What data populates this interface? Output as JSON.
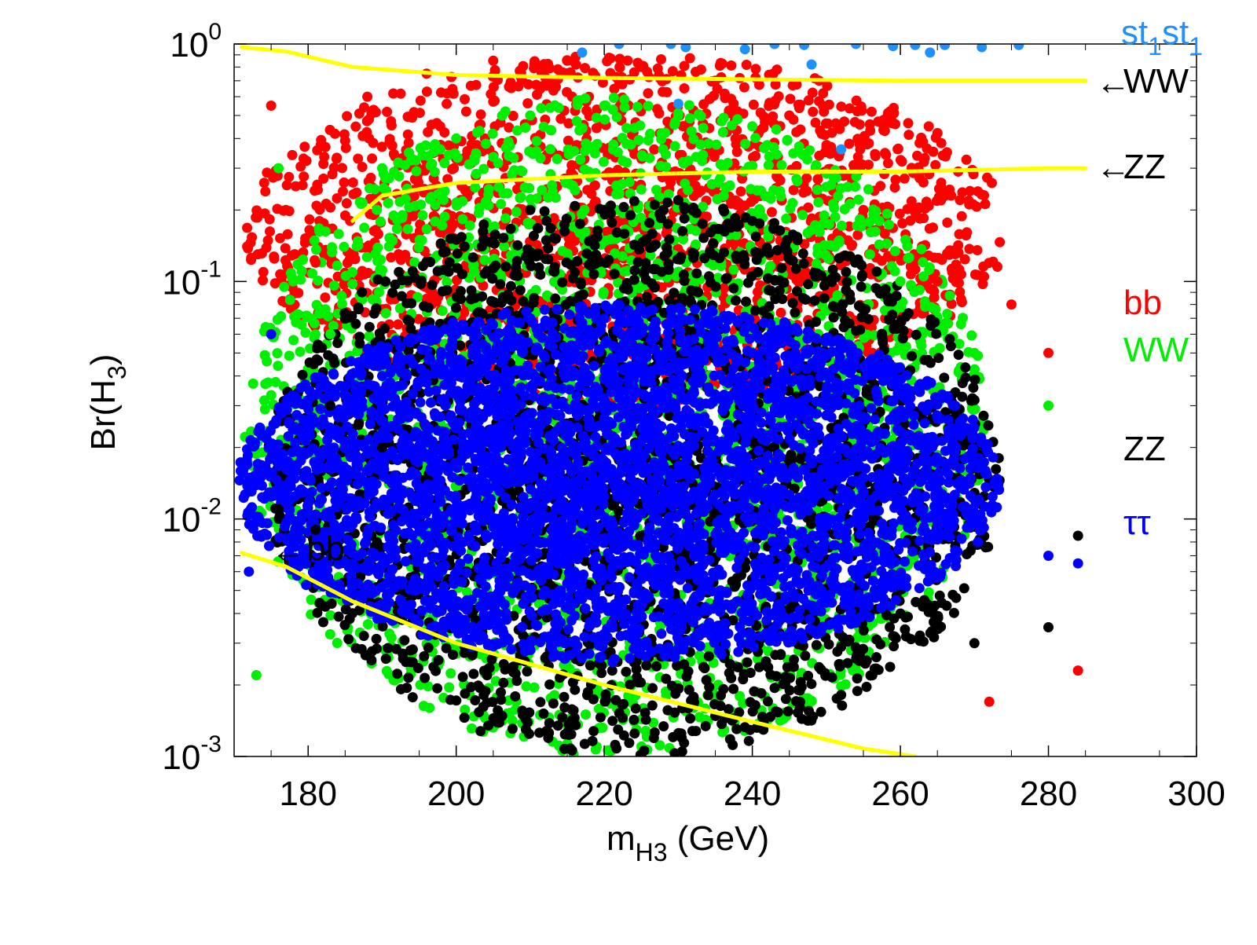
{
  "chart_data": {
    "type": "scatter",
    "title": "",
    "xlabel": {
      "main": "m",
      "sub": "H3",
      "unit": " (GeV)"
    },
    "ylabel": {
      "main": "Br(H",
      "sub": "3",
      "close": ")"
    },
    "xlim": [
      170,
      300
    ],
    "ylim": [
      0.001,
      1
    ],
    "yscale": "log",
    "x_ticks": [
      180,
      200,
      220,
      240,
      260,
      280,
      300
    ],
    "y_ticks": [
      {
        "value": 1,
        "base": "10",
        "exp": "0"
      },
      {
        "value": 0.1,
        "base": "10",
        "exp": "-1"
      },
      {
        "value": 0.01,
        "base": "10",
        "exp": "-2"
      },
      {
        "value": 0.001,
        "base": "10",
        "exp": "-3"
      }
    ],
    "grid": false,
    "legend_position": "right-outside",
    "legend": [
      {
        "label": "st",
        "sub": "1",
        "label2": "st",
        "sub2": "1",
        "color": "#1e90ff"
      },
      {
        "label": "WW",
        "color": "#000000",
        "arrow": true,
        "curve": "ww_sm"
      },
      {
        "label": "ZZ",
        "color": "#000000",
        "arrow": true,
        "curve": "zz_sm"
      },
      {
        "label": "bb",
        "color": "#ff0000"
      },
      {
        "label": "WW",
        "color": "#00ee00"
      },
      {
        "label": "ZZ",
        "color": "#000000"
      },
      {
        "label": "ττ",
        "color": "#0000ff"
      }
    ],
    "annotations": [
      {
        "text": "bb",
        "arrow": true,
        "x": 181.5,
        "y": 0.0066
      }
    ],
    "series": [
      {
        "name": "st1st1",
        "color": "#1e90ff",
        "x": [
          217,
          222,
          229,
          231,
          239,
          243,
          247,
          254,
          259,
          262,
          264,
          266,
          271,
          276,
          230,
          248,
          252
        ],
        "y": [
          0.92,
          1.0,
          1.0,
          0.97,
          0.95,
          1.0,
          0.99,
          1.0,
          0.98,
          0.99,
          0.92,
          0.99,
          0.97,
          0.99,
          0.56,
          0.82,
          0.36
        ]
      },
      {
        "name": "bb",
        "color": "#ff0000",
        "region": {
          "x": [
            173,
            285
          ],
          "ymin": 0.03,
          "ymax": 0.9
        },
        "x": [
          175,
          177,
          181,
          188,
          196,
          205,
          215,
          225,
          235,
          245,
          255,
          265,
          275,
          280,
          272,
          284
        ],
        "y": [
          0.55,
          0.2,
          0.12,
          0.6,
          0.75,
          0.85,
          0.85,
          0.8,
          0.7,
          0.5,
          0.2,
          0.1,
          0.08,
          0.05,
          0.0017,
          0.0023
        ]
      },
      {
        "name": "WW",
        "color": "#00ee00",
        "region": {
          "x": [
            173,
            282
          ],
          "ymin": 0.001,
          "ymax": 0.6
        },
        "x": [
          176,
          178,
          183,
          190,
          200,
          210,
          220,
          230,
          240,
          250,
          260,
          270,
          280,
          173
        ],
        "y": [
          0.3,
          0.1,
          0.06,
          0.3,
          0.4,
          0.5,
          0.55,
          0.5,
          0.45,
          0.25,
          0.1,
          0.05,
          0.03,
          0.0022
        ]
      },
      {
        "name": "ZZ",
        "color": "#000000",
        "region": {
          "x": [
            176,
            284
          ],
          "ymin": 0.001,
          "ymax": 0.22
        },
        "x": [
          176,
          181,
          183,
          190,
          200,
          210,
          220,
          230,
          240,
          250,
          260,
          270,
          280,
          284
        ],
        "y": [
          0.011,
          0.009,
          0.03,
          0.02,
          0.15,
          0.2,
          0.2,
          0.22,
          0.18,
          0.1,
          0.004,
          0.003,
          0.0035,
          0.0085
        ]
      },
      {
        "name": "tautau",
        "color": "#0000ff",
        "region": {
          "x": [
            172,
            284
          ],
          "ymin": 0.0025,
          "ymax": 0.08
        },
        "x": [
          172,
          175,
          178,
          190,
          200,
          210,
          220,
          230,
          240,
          250,
          260,
          270,
          280,
          284
        ],
        "y": [
          0.006,
          0.06,
          0.015,
          0.04,
          0.06,
          0.07,
          0.07,
          0.065,
          0.05,
          0.03,
          0.02,
          0.01,
          0.007,
          0.0065
        ]
      }
    ],
    "sm_curves": [
      {
        "name": "ww_sm",
        "color": "#ffff00",
        "x": [
          171,
          177,
          186,
          200,
          220,
          240,
          260,
          280,
          285
        ],
        "y": [
          0.97,
          0.93,
          0.8,
          0.74,
          0.72,
          0.71,
          0.7,
          0.7,
          0.7
        ]
      },
      {
        "name": "zz_sm",
        "color": "#ffff00",
        "x": [
          186,
          190,
          200,
          220,
          240,
          260,
          280,
          285
        ],
        "y": [
          0.18,
          0.23,
          0.26,
          0.28,
          0.29,
          0.29,
          0.3,
          0.3
        ]
      },
      {
        "name": "bb_sm",
        "color": "#ffff00",
        "x": [
          171,
          177,
          186,
          200,
          220,
          240,
          255,
          262
        ],
        "y": [
          0.0072,
          0.0063,
          0.0045,
          0.003,
          0.002,
          0.0014,
          0.00108,
          0.001
        ]
      }
    ]
  }
}
